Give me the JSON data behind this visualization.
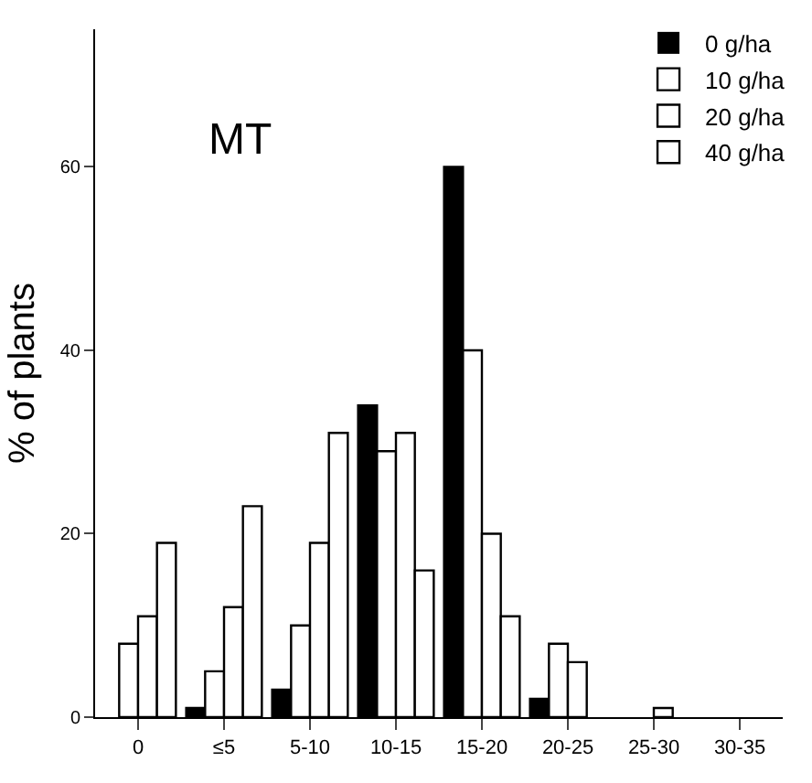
{
  "chart_data": {
    "type": "bar",
    "title": "MT",
    "ylabel": "% of plants",
    "categories": [
      "0",
      "≤5",
      "5-10",
      "10-15",
      "15-20",
      "20-25",
      "25-30",
      "30-35"
    ],
    "series": [
      {
        "name": "0 g/ha",
        "color": "#000000",
        "values": [
          0,
          1,
          3,
          34,
          60,
          2,
          0,
          0
        ]
      },
      {
        "name": "10 g/ha",
        "color": "#ffffff",
        "values": [
          8,
          5,
          10,
          29,
          40,
          8,
          0,
          0
        ]
      },
      {
        "name": "20 g/ha",
        "color": "#ffffff",
        "values": [
          11,
          12,
          19,
          31,
          20,
          6,
          1,
          0
        ]
      },
      {
        "name": "40 g/ha",
        "color": "#ffffff",
        "values": [
          19,
          23,
          31,
          16,
          11,
          0,
          0,
          0
        ]
      }
    ],
    "ylim": [
      0,
      75
    ],
    "yticks": [
      0,
      20,
      40,
      60
    ],
    "grid": false,
    "legend": "top right"
  }
}
